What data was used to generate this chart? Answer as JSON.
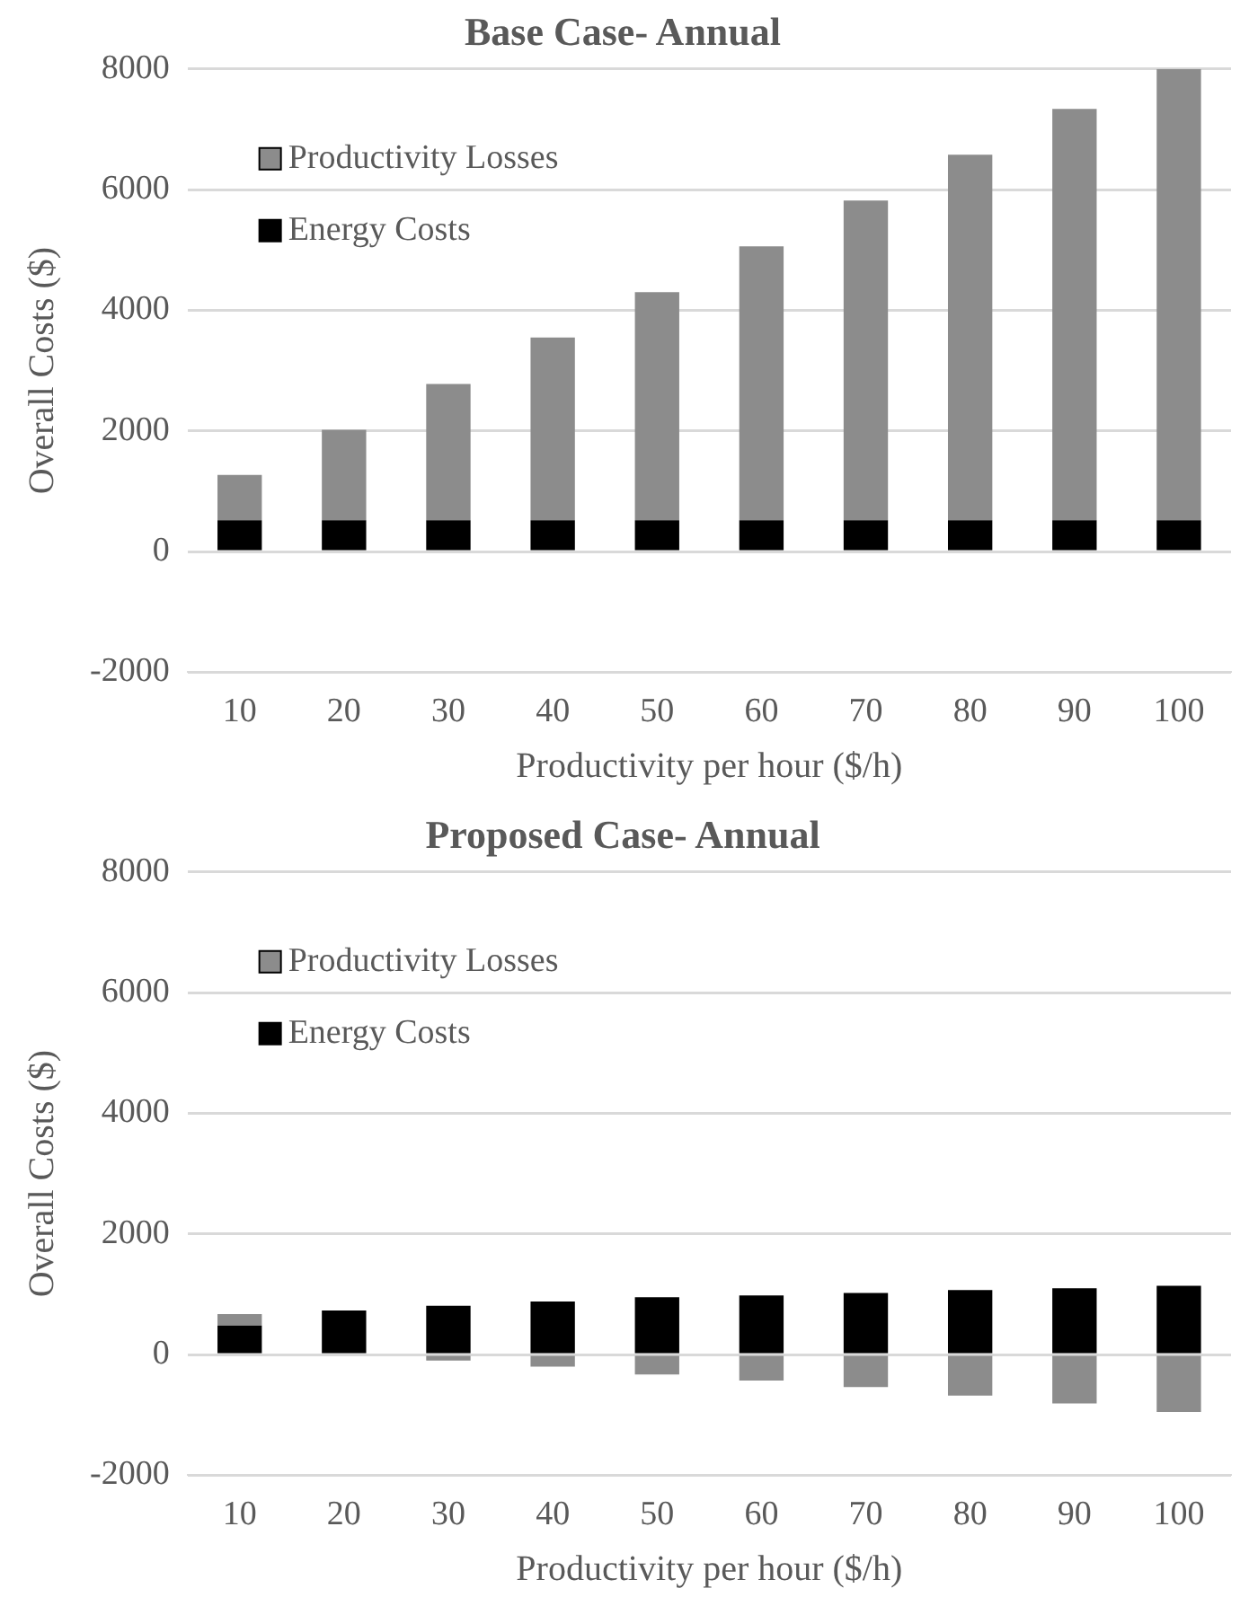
{
  "chart_data": [
    {
      "type": "bar",
      "title": "Base Case- Annual",
      "xlabel": "Productivity per hour ($/h)",
      "ylabel": "Overall Costs ($)",
      "categories": [
        "10",
        "20",
        "30",
        "40",
        "50",
        "60",
        "70",
        "80",
        "90",
        "100"
      ],
      "stacked": true,
      "ylim": [
        -2000,
        8000
      ],
      "yticks": [
        -2000,
        0,
        2000,
        4000,
        6000,
        8000
      ],
      "grid": "y",
      "legend": "top left",
      "series": [
        {
          "name": "Energy Costs",
          "color": "#000000",
          "values": [
            520,
            520,
            520,
            520,
            520,
            520,
            520,
            520,
            520,
            520
          ]
        },
        {
          "name": "Productivity Losses",
          "color": "#8c8c8c",
          "values": [
            750,
            1500,
            2260,
            3030,
            3780,
            4540,
            5300,
            6060,
            6820,
            7480
          ]
        }
      ]
    },
    {
      "type": "bar",
      "title": "Proposed Case- Annual",
      "xlabel": "Productivity per hour ($/h)",
      "ylabel": "Overall Costs ($)",
      "categories": [
        "10",
        "20",
        "30",
        "40",
        "50",
        "60",
        "70",
        "80",
        "90",
        "100"
      ],
      "stacked": true,
      "ylim": [
        -2000,
        8000
      ],
      "yticks": [
        -2000,
        0,
        2000,
        4000,
        6000,
        8000
      ],
      "grid": "y",
      "legend": "top left",
      "series": [
        {
          "name": "Energy Costs",
          "color": "#000000",
          "values": [
            480,
            730,
            810,
            880,
            950,
            980,
            1020,
            1070,
            1100,
            1140
          ]
        },
        {
          "name": "Productivity Losses",
          "color": "#8c8c8c",
          "values": [
            190,
            0,
            -100,
            -200,
            -330,
            -430,
            -540,
            -680,
            -810,
            -950
          ]
        }
      ]
    }
  ]
}
